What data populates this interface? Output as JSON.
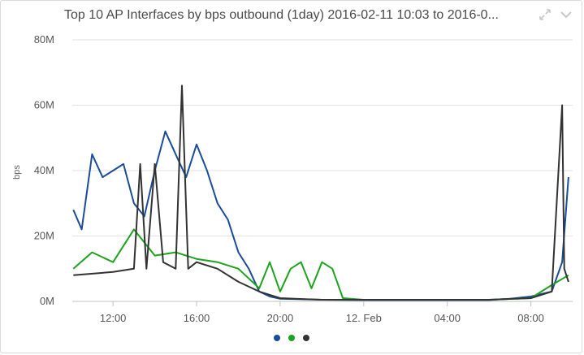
{
  "widget": {
    "title": "Top 10 AP Interfaces by bps outbound (1day) 2016-02-11 10:03 to 2016-0...",
    "expand_icon": "expand-arrows-icon",
    "menu_icon": "chevron-down-icon"
  },
  "chart_data": {
    "type": "line",
    "title": "Top 10 AP Interfaces by bps outbound (1day) 2016-02-11 10:03 to 2016-0...",
    "ylabel": "bps",
    "xlabel": "",
    "ylim": [
      0,
      80000000
    ],
    "y_ticks": [
      "0M",
      "20M",
      "40M",
      "60M",
      "80M"
    ],
    "x_ticks": [
      "12:00",
      "16:00",
      "20:00",
      "12. Feb",
      "04:00",
      "08:00"
    ],
    "x_range_hours": [
      10.05,
      34.0
    ],
    "grid": true,
    "legend_placement": "bottom",
    "series": [
      {
        "color": "#1a4d99",
        "x": [
          10.1,
          10.5,
          11,
          11.5,
          12,
          12.5,
          13,
          13.5,
          14,
          14.5,
          15,
          15.5,
          16,
          16.5,
          17,
          17.5,
          18,
          18.5,
          19,
          19.5,
          20,
          22,
          24,
          26,
          28,
          30,
          31,
          32,
          33,
          33.5,
          33.8
        ],
        "values": [
          28000000,
          22000000,
          45000000,
          38000000,
          40000000,
          42000000,
          30000000,
          26000000,
          40000000,
          52000000,
          45000000,
          38000000,
          48000000,
          40000000,
          30000000,
          25000000,
          15000000,
          10000000,
          3000000,
          1500000,
          800000,
          500000,
          400000,
          400000,
          400000,
          400000,
          800000,
          1500000,
          3000000,
          12000000,
          38000000
        ]
      },
      {
        "color": "#1da31d",
        "x": [
          10.1,
          11,
          12,
          13,
          14,
          15,
          16,
          17,
          18,
          19,
          19.5,
          20,
          20.5,
          21,
          21.5,
          22,
          22.5,
          23,
          24,
          26,
          28,
          30,
          32,
          33,
          33.8
        ],
        "values": [
          10000000,
          15000000,
          12000000,
          22000000,
          14000000,
          15000000,
          13000000,
          12000000,
          10000000,
          4000000,
          12000000,
          3000000,
          10000000,
          12000000,
          4000000,
          12000000,
          10000000,
          1000000,
          500000,
          500000,
          500000,
          500000,
          1000000,
          5000000,
          8000000
        ]
      },
      {
        "color": "#333333",
        "x": [
          10.1,
          12,
          13,
          13.3,
          13.6,
          14,
          14.4,
          15,
          15.3,
          15.6,
          16,
          17,
          18,
          19,
          20,
          22,
          24,
          26,
          28,
          30,
          32,
          33,
          33.5,
          33.6,
          33.8
        ],
        "values": [
          8000000,
          9000000,
          10000000,
          42000000,
          10000000,
          42000000,
          12000000,
          10000000,
          66000000,
          10000000,
          12000000,
          10000000,
          6000000,
          3000000,
          1000000,
          500000,
          500000,
          500000,
          500000,
          500000,
          1000000,
          3000000,
          60000000,
          10000000,
          6000000
        ]
      }
    ]
  }
}
